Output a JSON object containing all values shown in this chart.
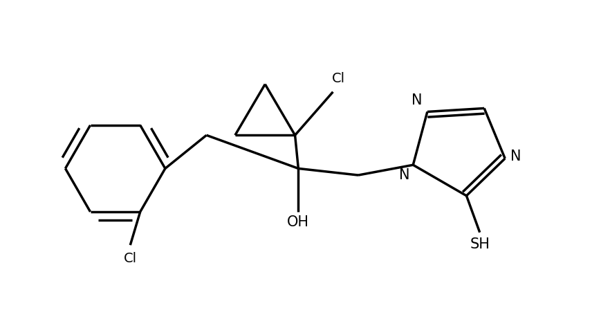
{
  "background_color": "#ffffff",
  "line_color": "#000000",
  "line_width": 2.5,
  "font_size": 14,
  "figsize": [
    8.82,
    4.58
  ],
  "dpi": 100,
  "xlim": [
    0.2,
    9.2
  ],
  "ylim": [
    0.3,
    5.0
  ]
}
